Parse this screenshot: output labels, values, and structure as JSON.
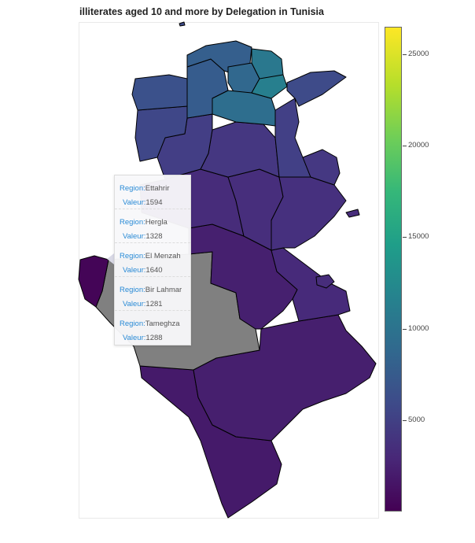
{
  "chart": {
    "title": "illiterates aged 10 and more by Delegation in Tunisia"
  },
  "colorbar": {
    "colors": [
      "#440154",
      "#482878",
      "#3e4a89",
      "#31688e",
      "#26828e",
      "#1f9e89",
      "#35b779",
      "#6ece58",
      "#b5de2b",
      "#fde725"
    ],
    "ticks": [
      {
        "value": 5000,
        "label": "5000"
      },
      {
        "value": 10000,
        "label": "10000"
      },
      {
        "value": 15000,
        "label": "15000"
      },
      {
        "value": 20000,
        "label": "20000"
      },
      {
        "value": 25000,
        "label": "25000"
      }
    ],
    "min": 0,
    "max": 26500
  },
  "tooltip": {
    "key_region": "Region:",
    "key_value": "Valeur:",
    "entries": [
      {
        "region": "Ettahrir",
        "value": "1594"
      },
      {
        "region": "Hergla",
        "value": "1328"
      },
      {
        "region": "El Menzah",
        "value": "1640"
      },
      {
        "region": "Bir Lahmar",
        "value": "1281"
      },
      {
        "region": "Tameghza",
        "value": "1288"
      }
    ]
  },
  "map_colors": {
    "north_teal": "#2a788e",
    "north_blue": "#355f8d",
    "mid_blue": "#3b528b",
    "indigo": "#433e85",
    "purple": "#472d7b",
    "deep_purple": "#481f70",
    "darkest": "#440154",
    "no_data": "#808080",
    "border": "#000000"
  }
}
